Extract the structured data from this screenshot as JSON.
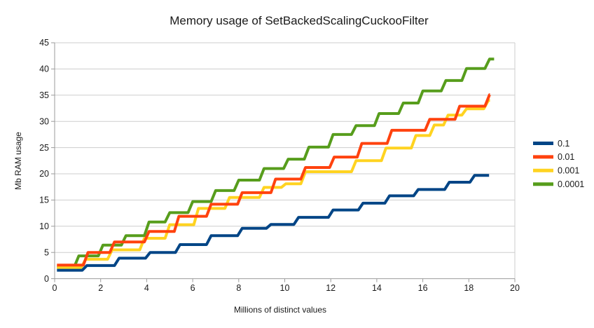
{
  "title": "Memory usage of SetBackedScalingCuckooFilter",
  "x_axis": {
    "label": "Millions of distinct values",
    "min": 0,
    "max": 20,
    "ticks": [
      0,
      2,
      4,
      6,
      8,
      10,
      12,
      14,
      16,
      18,
      20
    ]
  },
  "y_axis": {
    "label": "Mb RAM usage",
    "min": 0,
    "max": 45,
    "ticks": [
      0,
      5,
      10,
      15,
      20,
      25,
      30,
      35,
      40,
      45
    ]
  },
  "legend": {
    "position": "right",
    "items": [
      {
        "label": "0.1",
        "color": "#004586"
      },
      {
        "label": "0.01",
        "color": "#FF420E"
      },
      {
        "label": "0.001",
        "color": "#FFD320"
      },
      {
        "label": "0.0001",
        "color": "#579D1C"
      }
    ]
  },
  "style_colors": {
    "background": "#ffffff",
    "gridline": "#cdcdcd",
    "axis_line": "#9b9b9b",
    "text": "#1a1a1a"
  },
  "chart_data": {
    "type": "line",
    "step": true,
    "title": "Memory usage of SetBackedScalingCuckooFilter",
    "xlabel": "Millions of distinct values",
    "ylabel": "Mb RAM usage",
    "xlim": [
      0,
      20
    ],
    "ylim": [
      0,
      45
    ],
    "grid": "horizontal",
    "legend_position": "right",
    "series": [
      {
        "name": "0.1",
        "color": "#004586",
        "draw_order": 4,
        "points": [
          [
            0.1,
            1.6
          ],
          [
            1.3,
            2.5
          ],
          [
            2.7,
            3.9
          ],
          [
            4.05,
            5.0
          ],
          [
            5.35,
            6.5
          ],
          [
            6.7,
            8.2
          ],
          [
            8.05,
            9.6
          ],
          [
            9.3,
            10.35
          ],
          [
            10.5,
            11.7
          ],
          [
            12.0,
            13.1
          ],
          [
            13.3,
            14.4
          ],
          [
            14.45,
            15.8
          ],
          [
            15.7,
            17.0
          ],
          [
            17.05,
            18.4
          ],
          [
            18.15,
            19.7
          ]
        ],
        "end_x": 18.88
      },
      {
        "name": "0.01",
        "color": "#FF420E",
        "draw_order": 3,
        "points": [
          [
            0.1,
            2.6
          ],
          [
            1.35,
            5.0
          ],
          [
            2.5,
            7.0
          ],
          [
            4.0,
            9.0
          ],
          [
            5.3,
            11.9
          ],
          [
            6.7,
            14.2
          ],
          [
            8.05,
            16.4
          ],
          [
            9.5,
            19.0
          ],
          [
            10.8,
            21.2
          ],
          [
            12.05,
            23.2
          ],
          [
            13.25,
            25.8
          ],
          [
            14.55,
            28.3
          ],
          [
            16.2,
            30.4
          ],
          [
            17.5,
            32.9
          ],
          [
            18.8,
            35.1
          ]
        ],
        "end_x": 18.92
      },
      {
        "name": "0.001",
        "color": "#FFD320",
        "draw_order": 2,
        "points": [
          [
            0.1,
            2.1
          ],
          [
            1.25,
            3.7
          ],
          [
            2.4,
            5.5
          ],
          [
            3.8,
            7.7
          ],
          [
            4.9,
            10.3
          ],
          [
            6.15,
            13.4
          ],
          [
            7.5,
            15.5
          ],
          [
            9.0,
            17.4
          ],
          [
            9.95,
            18.1
          ],
          [
            10.8,
            20.4
          ],
          [
            13.0,
            22.5
          ],
          [
            14.3,
            24.9
          ],
          [
            15.6,
            27.3
          ],
          [
            16.4,
            29.3
          ],
          [
            17.0,
            31.2
          ],
          [
            17.8,
            32.4
          ],
          [
            18.75,
            34.0
          ]
        ],
        "end_x": 18.92
      },
      {
        "name": "0.0001",
        "color": "#579D1C",
        "draw_order": 1,
        "points": [
          [
            0.1,
            2.2
          ],
          [
            0.95,
            4.35
          ],
          [
            2.0,
            6.4
          ],
          [
            3.0,
            8.2
          ],
          [
            4.0,
            10.8
          ],
          [
            4.9,
            12.6
          ],
          [
            5.9,
            14.7
          ],
          [
            6.9,
            16.8
          ],
          [
            7.9,
            18.8
          ],
          [
            9.0,
            21.0
          ],
          [
            10.05,
            22.8
          ],
          [
            10.95,
            25.1
          ],
          [
            12.0,
            27.5
          ],
          [
            13.0,
            29.2
          ],
          [
            14.0,
            31.5
          ],
          [
            15.05,
            33.5
          ],
          [
            15.9,
            35.8
          ],
          [
            16.9,
            37.8
          ],
          [
            17.8,
            40.1
          ],
          [
            18.8,
            41.9
          ]
        ],
        "end_x": 19.1
      }
    ]
  }
}
